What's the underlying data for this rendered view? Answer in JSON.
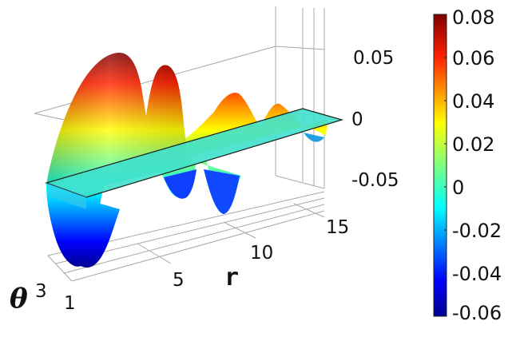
{
  "chart_data": {
    "type": "surface3d",
    "title": "",
    "axes": {
      "r": {
        "label": "r",
        "ticks": [
          "5",
          "10",
          "15"
        ],
        "range": [
          0,
          16
        ]
      },
      "theta": {
        "label": "θ",
        "ticks": [
          "1",
          "3"
        ],
        "range": [
          0,
          3.2
        ]
      },
      "z": {
        "label": "",
        "ticks": [
          "0.05",
          "0",
          "-0.05"
        ],
        "range": [
          -0.06,
          0.08
        ]
      }
    },
    "surface_peaks": [
      {
        "r": 2.2,
        "z": 0.078
      },
      {
        "r": 4.6,
        "z": 0.071
      },
      {
        "r": 7.0,
        "z": -0.04
      },
      {
        "r": 8.4,
        "z": 0.034
      },
      {
        "r": 9.6,
        "z": -0.028
      },
      {
        "r": 11.4,
        "z": 0.016
      },
      {
        "r": 14.5,
        "z": -0.008
      }
    ],
    "front_trough": {
      "r": 2.5,
      "z": -0.062
    },
    "zero_plane": {
      "z": 0,
      "color": "#40e0cc"
    },
    "colorbar": {
      "ticks": [
        "0.08",
        "0.06",
        "0.04",
        "0.02",
        "0",
        "-0.02",
        "-0.04",
        "-0.06"
      ],
      "range": [
        -0.06,
        0.08
      ],
      "colormap": "jet"
    },
    "grid": true
  }
}
